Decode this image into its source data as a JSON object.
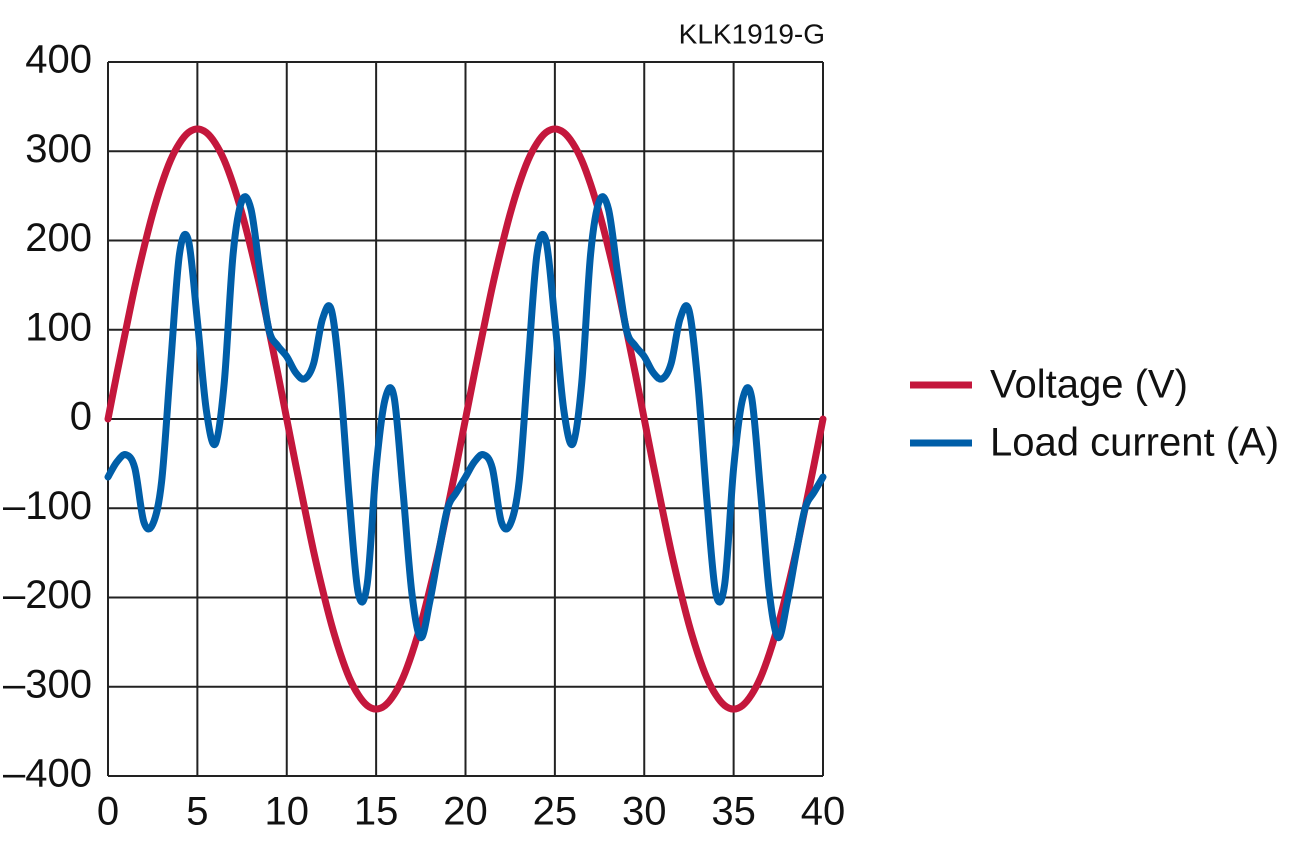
{
  "chart_data": {
    "type": "line",
    "annotation": "KLK1919-G",
    "x": [
      0,
      0.5,
      1,
      1.5,
      2,
      2.5,
      3,
      3.5,
      4,
      4.5,
      5,
      5.5,
      6,
      6.5,
      7,
      7.5,
      8,
      8.5,
      9,
      9.5,
      10,
      10.5,
      11,
      11.5,
      12,
      12.5,
      13,
      13.5,
      14,
      14.5,
      15,
      15.5,
      16,
      16.5,
      17,
      17.5,
      18,
      18.5,
      19,
      19.5,
      20,
      20.5,
      21,
      21.5,
      22,
      22.5,
      23,
      23.5,
      24,
      24.5,
      25,
      25.5,
      26,
      26.5,
      27,
      27.5,
      28,
      28.5,
      29,
      29.5,
      30,
      30.5,
      31,
      31.5,
      32,
      32.5,
      33,
      33.5,
      34,
      34.5,
      35,
      35.5,
      36,
      36.5,
      37,
      37.5,
      38,
      38.5,
      39,
      39.5,
      40
    ],
    "series": [
      {
        "name": "Voltage (V)",
        "color": "#c4173c",
        "values": [
          0,
          51,
          100,
          148,
          191,
          230,
          263,
          290,
          309,
          321,
          325,
          321,
          309,
          290,
          263,
          230,
          191,
          148,
          100,
          51,
          0,
          -51,
          -100,
          -148,
          -191,
          -230,
          -263,
          -290,
          -309,
          -321,
          -325,
          -321,
          -309,
          -290,
          -263,
          -230,
          -191,
          -148,
          -100,
          -51,
          0,
          51,
          100,
          148,
          191,
          230,
          263,
          290,
          309,
          321,
          325,
          321,
          309,
          290,
          263,
          230,
          191,
          148,
          100,
          51,
          0,
          -51,
          -100,
          -148,
          -191,
          -230,
          -263,
          -290,
          -309,
          -321,
          -325,
          -321,
          -309,
          -290,
          -263,
          -230,
          -191,
          -148,
          -100,
          -51,
          0
        ]
      },
      {
        "name": "Load current (A)",
        "color": "#005ea8",
        "values": [
          -65,
          -48,
          -40,
          -55,
          -115,
          -118,
          -70,
          60,
          185,
          200,
          110,
          10,
          -28,
          40,
          185,
          245,
          235,
          165,
          100,
          82,
          70,
          52,
          45,
          62,
          112,
          122,
          40,
          -90,
          -195,
          -185,
          -55,
          22,
          25,
          -80,
          -195,
          -245,
          -205,
          -150,
          -100,
          -82,
          -65,
          -48,
          -40,
          -55,
          -115,
          -118,
          -70,
          60,
          185,
          200,
          110,
          10,
          -28,
          40,
          185,
          245,
          235,
          165,
          100,
          82,
          70,
          52,
          45,
          62,
          112,
          122,
          40,
          -90,
          -195,
          -185,
          -55,
          22,
          25,
          -80,
          -195,
          -245,
          -205,
          -150,
          -100,
          -82,
          -65
        ]
      }
    ],
    "xlim": [
      0,
      40
    ],
    "xticks": [
      0,
      5,
      10,
      15,
      20,
      25,
      30,
      35,
      40
    ],
    "ylim": [
      -400,
      400
    ],
    "yticks": [
      {
        "value": -400,
        "label": "–400"
      },
      {
        "value": -300,
        "label": "–300"
      },
      {
        "value": -200,
        "label": "–200"
      },
      {
        "value": -100,
        "label": "–100"
      },
      0,
      100,
      200,
      300,
      400
    ],
    "grid": true,
    "legend": "right"
  }
}
